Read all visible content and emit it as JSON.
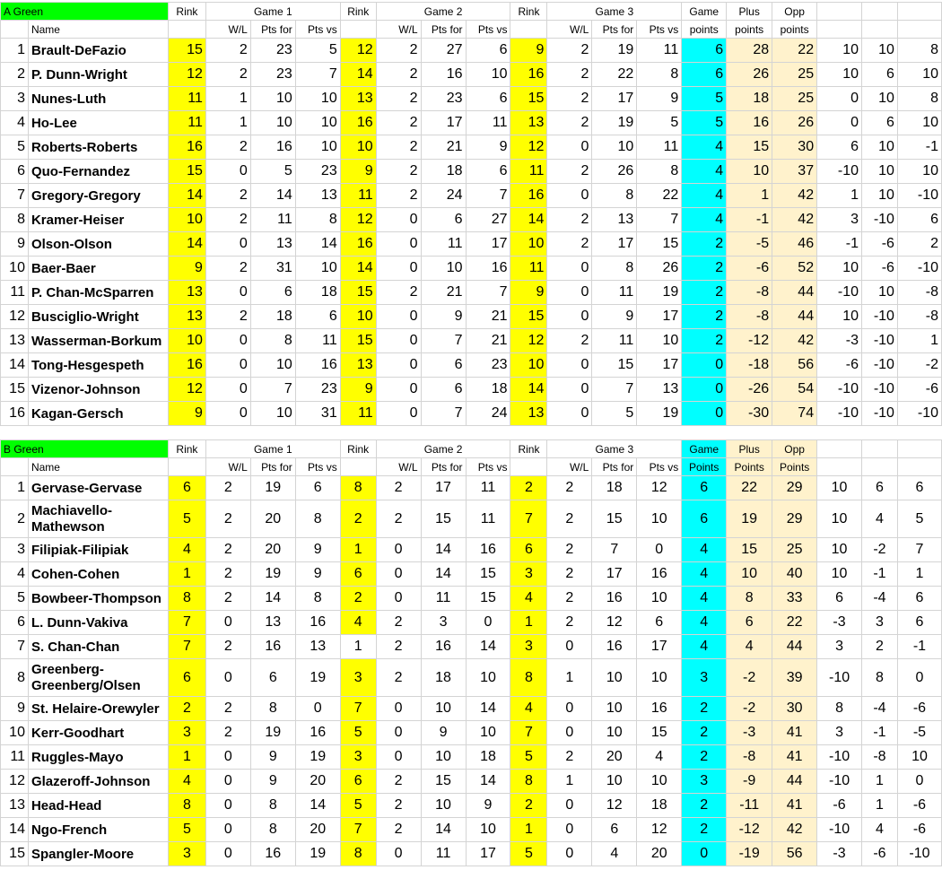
{
  "sections": [
    {
      "title": "A Green",
      "row1": [
        "Rink",
        "Game 1",
        "Rink",
        "Game 2",
        "Rink",
        "Game 3",
        "Game",
        "Plus",
        "Opp"
      ],
      "row2": [
        "Name",
        "W/L",
        "Pts for",
        "Pts vs",
        "W/L",
        "Pts for",
        "Pts vs",
        "W/L",
        "Pts for",
        "Pts vs",
        "points",
        "points",
        "points"
      ],
      "rows": [
        {
          "i": "1",
          "name": "Brault-DeFazio",
          "c": [
            "15",
            "2",
            "23",
            "5",
            "12",
            "2",
            "27",
            "6",
            "9",
            "2",
            "19",
            "11",
            "6",
            "28",
            "22",
            "10",
            "10",
            "8"
          ]
        },
        {
          "i": "2",
          "name": "P. Dunn-Wright",
          "c": [
            "12",
            "2",
            "23",
            "7",
            "14",
            "2",
            "16",
            "10",
            "16",
            "2",
            "22",
            "8",
            "6",
            "26",
            "25",
            "10",
            "6",
            "10"
          ]
        },
        {
          "i": "3",
          "name": "Nunes-Luth",
          "c": [
            "11",
            "1",
            "10",
            "10",
            "13",
            "2",
            "23",
            "6",
            "15",
            "2",
            "17",
            "9",
            "5",
            "18",
            "25",
            "0",
            "10",
            "8"
          ]
        },
        {
          "i": "4",
          "name": "Ho-Lee",
          "c": [
            "11",
            "1",
            "10",
            "10",
            "16",
            "2",
            "17",
            "11",
            "13",
            "2",
            "19",
            "5",
            "5",
            "16",
            "26",
            "0",
            "6",
            "10"
          ]
        },
        {
          "i": "5",
          "name": "Roberts-Roberts",
          "c": [
            "16",
            "2",
            "16",
            "10",
            "10",
            "2",
            "21",
            "9",
            "12",
            "0",
            "10",
            "11",
            "4",
            "15",
            "30",
            "6",
            "10",
            "-1"
          ]
        },
        {
          "i": "6",
          "name": "Quo-Fernandez",
          "c": [
            "15",
            "0",
            "5",
            "23",
            "9",
            "2",
            "18",
            "6",
            "11",
            "2",
            "26",
            "8",
            "4",
            "10",
            "37",
            "-10",
            "10",
            "10"
          ]
        },
        {
          "i": "7",
          "name": "Gregory-Gregory",
          "c": [
            "14",
            "2",
            "14",
            "13",
            "11",
            "2",
            "24",
            "7",
            "16",
            "0",
            "8",
            "22",
            "4",
            "1",
            "42",
            "1",
            "10",
            "-10"
          ]
        },
        {
          "i": "8",
          "name": "Kramer-Heiser",
          "c": [
            "10",
            "2",
            "11",
            "8",
            "12",
            "0",
            "6",
            "27",
            "14",
            "2",
            "13",
            "7",
            "4",
            "-1",
            "42",
            "3",
            "-10",
            "6"
          ]
        },
        {
          "i": "9",
          "name": "Olson-Olson",
          "c": [
            "14",
            "0",
            "13",
            "14",
            "16",
            "0",
            "11",
            "17",
            "10",
            "2",
            "17",
            "15",
            "2",
            "-5",
            "46",
            "-1",
            "-6",
            "2"
          ]
        },
        {
          "i": "10",
          "name": "Baer-Baer",
          "c": [
            "9",
            "2",
            "31",
            "10",
            "14",
            "0",
            "10",
            "16",
            "11",
            "0",
            "8",
            "26",
            "2",
            "-6",
            "52",
            "10",
            "-6",
            "-10"
          ]
        },
        {
          "i": "11",
          "name": "P. Chan-McSparren",
          "c": [
            "13",
            "0",
            "6",
            "18",
            "15",
            "2",
            "21",
            "7",
            "9",
            "0",
            "11",
            "19",
            "2",
            "-8",
            "44",
            "-10",
            "10",
            "-8"
          ]
        },
        {
          "i": "12",
          "name": "Busciglio-Wright",
          "c": [
            "13",
            "2",
            "18",
            "6",
            "10",
            "0",
            "9",
            "21",
            "15",
            "0",
            "9",
            "17",
            "2",
            "-8",
            "44",
            "10",
            "-10",
            "-8"
          ]
        },
        {
          "i": "13",
          "name": "Wasserman-Borkum",
          "c": [
            "10",
            "0",
            "8",
            "11",
            "15",
            "0",
            "7",
            "21",
            "12",
            "2",
            "11",
            "10",
            "2",
            "-12",
            "42",
            "-3",
            "-10",
            "1"
          ]
        },
        {
          "i": "14",
          "name": "Tong-Hesgespeth",
          "c": [
            "16",
            "0",
            "10",
            "16",
            "13",
            "0",
            "6",
            "23",
            "10",
            "0",
            "15",
            "17",
            "0",
            "-18",
            "56",
            "-6",
            "-10",
            "-2"
          ]
        },
        {
          "i": "15",
          "name": "Vizenor-Johnson",
          "c": [
            "12",
            "0",
            "7",
            "23",
            "9",
            "0",
            "6",
            "18",
            "14",
            "0",
            "7",
            "13",
            "0",
            "-26",
            "54",
            "-10",
            "-10",
            "-6"
          ]
        },
        {
          "i": "16",
          "name": "Kagan-Gersch",
          "c": [
            "9",
            "0",
            "10",
            "31",
            "11",
            "0",
            "7",
            "24",
            "13",
            "0",
            "5",
            "19",
            "0",
            "-30",
            "74",
            "-10",
            "-10",
            "-10"
          ]
        }
      ]
    },
    {
      "title": "B Green",
      "row1": [
        "Rink",
        "Game 1",
        "Rink",
        "Game 2",
        "Rink",
        "Game 3",
        "Game",
        "Plus",
        "Opp"
      ],
      "row2": [
        "Name",
        "W/L",
        "Pts for",
        "Pts vs",
        "W/L",
        "Pts for",
        "Pts vs",
        "W/L",
        "Pts for",
        "Pts vs",
        "Points",
        "Points",
        "Points"
      ],
      "rows": [
        {
          "i": "1",
          "name": "Gervase-Gervase",
          "c": [
            "6",
            "2",
            "19",
            "6",
            "8",
            "2",
            "17",
            "11",
            "2",
            "2",
            "18",
            "12",
            "6",
            "22",
            "29",
            "10",
            "6",
            "6"
          ]
        },
        {
          "i": "2",
          "name": "Machiavello-Mathewson",
          "tall": true,
          "c": [
            "5",
            "2",
            "20",
            "8",
            "2",
            "2",
            "15",
            "11",
            "7",
            "2",
            "15",
            "10",
            "6",
            "19",
            "29",
            "10",
            "4",
            "5"
          ]
        },
        {
          "i": "3",
          "name": "Filipiak-Filipiak",
          "c": [
            "4",
            "2",
            "20",
            "9",
            "1",
            "0",
            "14",
            "16",
            "6",
            "2",
            "7",
            "0",
            "4",
            "15",
            "25",
            "10",
            "-2",
            "7"
          ]
        },
        {
          "i": "4",
          "name": "Cohen-Cohen",
          "c": [
            "1",
            "2",
            "19",
            "9",
            "6",
            "0",
            "14",
            "15",
            "3",
            "2",
            "17",
            "16",
            "4",
            "10",
            "40",
            "10",
            "-1",
            "1"
          ]
        },
        {
          "i": "5",
          "name": "Bowbeer-Thompson",
          "c": [
            "8",
            "2",
            "14",
            "8",
            "2",
            "0",
            "11",
            "15",
            "4",
            "2",
            "16",
            "10",
            "4",
            "8",
            "33",
            "6",
            "-4",
            "6"
          ]
        },
        {
          "i": "6",
          "name": "L. Dunn-Vakiva",
          "c": [
            "7",
            "0",
            "13",
            "16",
            "4",
            "2",
            "3",
            "0",
            "1",
            "2",
            "12",
            "6",
            "4",
            "6",
            "22",
            "-3",
            "3",
            "6"
          ]
        },
        {
          "i": "7",
          "name": "S. Chan-Chan",
          "norink2": true,
          "c": [
            "7",
            "2",
            "16",
            "13",
            "1",
            "2",
            "16",
            "14",
            "3",
            "0",
            "16",
            "17",
            "4",
            "4",
            "44",
            "3",
            "2",
            "-1"
          ]
        },
        {
          "i": "8",
          "name": "Greenberg-Greenberg/Olsen",
          "tall": true,
          "c": [
            "6",
            "0",
            "6",
            "19",
            "3",
            "2",
            "18",
            "10",
            "8",
            "1",
            "10",
            "10",
            "3",
            "-2",
            "39",
            "-10",
            "8",
            "0"
          ]
        },
        {
          "i": "9",
          "name": "St. Helaire-Orewyler",
          "c": [
            "2",
            "2",
            "8",
            "0",
            "7",
            "0",
            "10",
            "14",
            "4",
            "0",
            "10",
            "16",
            "2",
            "-2",
            "30",
            "8",
            "-4",
            "-6"
          ]
        },
        {
          "i": "10",
          "name": "Kerr-Goodhart",
          "c": [
            "3",
            "2",
            "19",
            "16",
            "5",
            "0",
            "9",
            "10",
            "7",
            "0",
            "10",
            "15",
            "2",
            "-3",
            "41",
            "3",
            "-1",
            "-5"
          ]
        },
        {
          "i": "11",
          "name": "Ruggles-Mayo",
          "c": [
            "1",
            "0",
            "9",
            "19",
            "3",
            "0",
            "10",
            "18",
            "5",
            "2",
            "20",
            "4",
            "2",
            "-8",
            "41",
            "-10",
            "-8",
            "10"
          ]
        },
        {
          "i": "12",
          "name": "Glazeroff-Johnson",
          "c": [
            "4",
            "0",
            "9",
            "20",
            "6",
            "2",
            "15",
            "14",
            "8",
            "1",
            "10",
            "10",
            "3",
            "-9",
            "44",
            "-10",
            "1",
            "0"
          ]
        },
        {
          "i": "13",
          "name": "Head-Head",
          "c": [
            "8",
            "0",
            "8",
            "14",
            "5",
            "2",
            "10",
            "9",
            "2",
            "0",
            "12",
            "18",
            "2",
            "-11",
            "41",
            "-6",
            "1",
            "-6"
          ]
        },
        {
          "i": "14",
          "name": "Ngo-French",
          "c": [
            "5",
            "0",
            "8",
            "20",
            "7",
            "2",
            "14",
            "10",
            "1",
            "0",
            "6",
            "12",
            "2",
            "-12",
            "42",
            "-10",
            "4",
            "-6"
          ]
        },
        {
          "i": "15",
          "name": "Spangler-Moore",
          "c": [
            "3",
            "0",
            "16",
            "19",
            "8",
            "0",
            "11",
            "17",
            "5",
            "0",
            "4",
            "20",
            "0",
            "-19",
            "56",
            "-3",
            "-6",
            "-10"
          ]
        }
      ]
    }
  ]
}
